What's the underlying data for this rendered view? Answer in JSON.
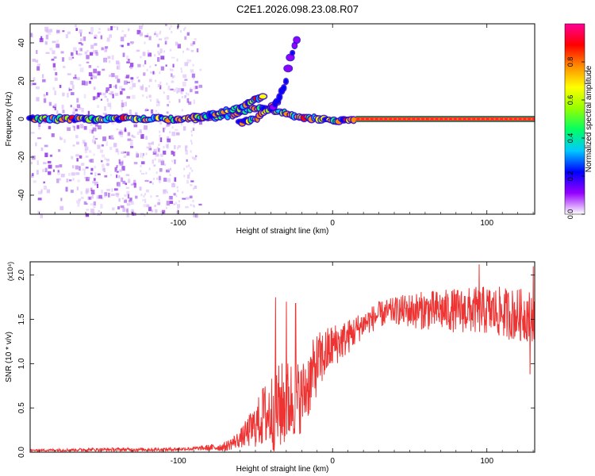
{
  "title": "C2E1.2026.098.23.08.R07",
  "chart_data": [
    {
      "type": "heatmap",
      "xlabel": "Height of straight line (km)",
      "ylabel": "Frequency (Hz)",
      "xlim": [
        -196,
        131
      ],
      "ylim": [
        -50,
        50
      ],
      "xticks": [
        -100,
        0,
        100
      ],
      "yticks": [
        -40,
        -20,
        0,
        20,
        40
      ],
      "colorbar": {
        "label": "Normalized spectral amplitude",
        "range": [
          0.0,
          1.0
        ],
        "ticks": [
          "0.0",
          "0.2",
          "0.4",
          "0.6",
          "0.8"
        ],
        "tick_values": [
          0.0,
          0.2,
          0.4,
          0.6,
          0.8
        ],
        "colors": [
          "#ffffff",
          "#9600ff",
          "#0000ff",
          "#00c8ff",
          "#00ff64",
          "#96ff00",
          "#ffff00",
          "#ff8c00",
          "#ff0000",
          "#ff0096"
        ]
      },
      "carrier": {
        "x_start": 15,
        "x_end": 131,
        "freq": 0
      },
      "features": [
        {
          "name": "main-trace",
          "x": [
            -196,
            -150,
            -100,
            -80,
            -60,
            -50,
            -40,
            -30,
            -20,
            -10,
            0,
            10,
            15
          ],
          "freq": [
            0,
            0,
            0,
            1,
            3,
            6,
            5,
            3,
            1,
            0,
            -1,
            0,
            0
          ]
        },
        {
          "name": "upper-branch",
          "x": [
            -90,
            -80,
            -70,
            -60,
            -55,
            -50,
            -45
          ],
          "freq": [
            1,
            2,
            4,
            6,
            8,
            10,
            12
          ]
        },
        {
          "name": "lower-branch",
          "x": [
            -60,
            -55,
            -50,
            -45,
            -40,
            -35
          ],
          "freq": [
            -2,
            -1,
            0,
            3,
            6,
            9
          ]
        },
        {
          "name": "rising-streak",
          "x": [
            -40,
            -35,
            -30,
            -28,
            -25,
            -22
          ],
          "freq": [
            5,
            10,
            20,
            30,
            38,
            45
          ]
        }
      ]
    },
    {
      "type": "line",
      "xlabel": "Height of straight line (km)",
      "ylabel": "SNR (10 * v/v)",
      "y_multiplier": "(x10⁴)",
      "xlim": [
        -196,
        131
      ],
      "ylim": [
        0.0,
        2.15
      ],
      "xticks": [
        -100,
        0,
        100
      ],
      "yticks": [
        0.0,
        0.5,
        1.0,
        1.5,
        2.0
      ],
      "ytick_labels": [
        "0.0",
        "0.5",
        "1.0",
        "1.5",
        "2.0"
      ],
      "color": "#ee3333",
      "envelope": {
        "x": [
          -196,
          -150,
          -110,
          -90,
          -70,
          -60,
          -50,
          -45,
          -40,
          -35,
          -30,
          -25,
          -20,
          -15,
          -10,
          -5,
          0,
          10,
          20,
          30,
          40,
          50,
          60,
          80,
          100,
          120,
          131
        ],
        "mean": [
          0.02,
          0.03,
          0.03,
          0.04,
          0.06,
          0.15,
          0.3,
          0.4,
          0.45,
          0.5,
          0.55,
          0.6,
          0.62,
          0.8,
          1.0,
          1.1,
          1.2,
          1.3,
          1.45,
          1.55,
          1.6,
          1.6,
          1.6,
          1.6,
          1.6,
          1.55,
          1.55
        ],
        "amp": [
          0.01,
          0.02,
          0.02,
          0.02,
          0.05,
          0.1,
          0.25,
          0.35,
          0.45,
          0.5,
          0.5,
          0.45,
          0.4,
          0.4,
          0.35,
          0.3,
          0.25,
          0.2,
          0.15,
          0.15,
          0.15,
          0.2,
          0.22,
          0.25,
          0.28,
          0.3,
          0.3
        ]
      },
      "peaks": [
        {
          "x": -37,
          "y": 1.75
        },
        {
          "x": -30,
          "y": 1.7
        },
        {
          "x": -24,
          "y": 1.68
        },
        {
          "x": -45,
          "y": 0.72
        },
        {
          "x": 95,
          "y": 2.12
        },
        {
          "x": 130,
          "y": 2.1
        },
        {
          "x": 128,
          "y": 0.88
        }
      ]
    }
  ]
}
